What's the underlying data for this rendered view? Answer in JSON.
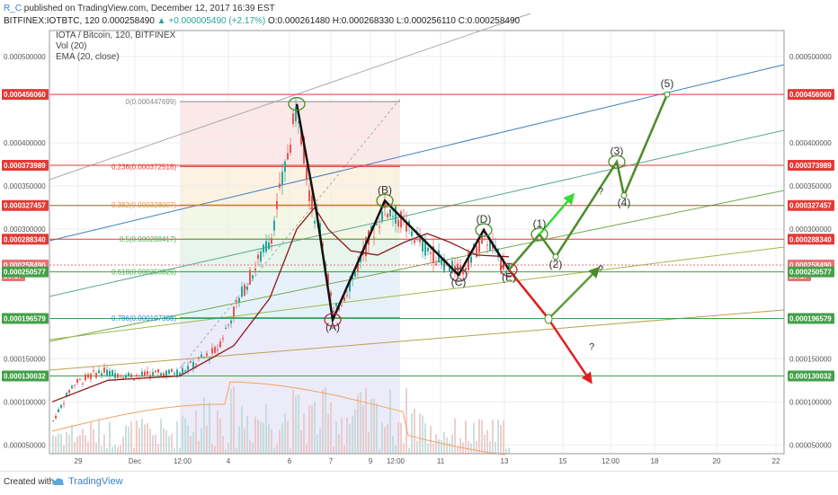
{
  "header": {
    "author": "R_C",
    "published": "published on TradingView.com, December 12, 2017 16:39 EST"
  },
  "symbol_line": {
    "symbol": "BITFINEX:IOTBTC, 120",
    "last": "0.000258490",
    "change": "▲ +0.000005490 (+2.17%)",
    "ohlc": "O:0.000261480 H:0.000268330 L:0.000256110 C:0.000258490"
  },
  "indicators": [
    "IOTA / Bitcoin, 120, BITFINEX",
    "Vol (20)",
    "EMA (20, close)"
  ],
  "footer": {
    "created_with": "Created with",
    "brand": "TradingView"
  },
  "colors": {
    "candle_up": "#26a69a",
    "candle_down": "#ef5350",
    "ema": "#8b1a1a",
    "wave_black": "#111111",
    "wave_green": "#4a8c2a",
    "arrow_bright": "#33dd33",
    "arrow_red": "#e02020",
    "red_line": "#d32f2f",
    "green_line": "#43a047",
    "blue_line": "#3f7fbf",
    "volume": "#c8c8c8"
  },
  "chart_data": {
    "type": "candlestick",
    "price_range": [
      4e-05,
      0.00053
    ],
    "x_tick_labels": [
      "29",
      "Dec",
      "12:00",
      "4",
      "6",
      "7",
      "9",
      "12:00",
      "11",
      "13",
      "15",
      "12:00",
      "18",
      "20",
      "22"
    ],
    "y_tick_labels": [
      "0.000500000",
      "0.000400000",
      "0.000350000",
      "0.000300000",
      "0.000150000",
      "0.000100000",
      "0.000050000"
    ],
    "price_badges": [
      {
        "label": "0.000456060",
        "value": 0.00045606,
        "color": "#e53935"
      },
      {
        "label": "0.000373989",
        "value": 0.000373989,
        "color": "#e53935"
      },
      {
        "label": "0.000327457",
        "value": 0.000327457,
        "color": "#e53935"
      },
      {
        "label": "0.000288340",
        "value": 0.00028834,
        "color": "#e53935"
      },
      {
        "label": "0.000258490",
        "value": 0.00025849,
        "color": "#e57373"
      },
      {
        "label": "20:17",
        "value": 0.000246,
        "color": "#e57373"
      },
      {
        "label": "0.000250577",
        "value": 0.000250577,
        "color": "#43a047"
      },
      {
        "label": "0.000196579",
        "value": 0.000196579,
        "color": "#43a047"
      },
      {
        "label": "0.000130032",
        "value": 0.000130032,
        "color": "#43a047"
      }
    ],
    "fib_levels": [
      {
        "label": "0(0.000447699)",
        "value": 0.000447699,
        "color": "#888888"
      },
      {
        "label": "0.236(0.000372518)",
        "value": 0.000372518,
        "color": "#e53935"
      },
      {
        "label": "0.382(0.000328007)",
        "value": 0.000328007,
        "color": "#c9a227"
      },
      {
        "label": "0.5(0.000288417)",
        "value": 0.000288417,
        "color": "#4caf50"
      },
      {
        "label": "0.618(0.000250826)",
        "value": 0.000250826,
        "color": "#4caf50"
      },
      {
        "label": "0.786(0.000197308)",
        "value": 0.000197308,
        "color": "#1e88e5"
      }
    ],
    "wave_labels": [
      {
        "label": "(A)",
        "price": 0.000195,
        "offset": 12
      },
      {
        "label": "(B)",
        "price": 0.000333,
        "offset": -8
      },
      {
        "label": "(C)",
        "price": 0.000247,
        "offset": 12
      },
      {
        "label": "(D)",
        "price": 0.000299,
        "offset": -8
      },
      {
        "label": "(E)",
        "price": 0.000253,
        "offset": 12
      },
      {
        "label": "(1)",
        "price": 0.000294,
        "offset": -8
      },
      {
        "label": "(2)",
        "price": 0.000268,
        "offset": 12
      },
      {
        "label": "(3)",
        "price": 0.000378,
        "offset": -8
      },
      {
        "label": "(4)",
        "price": 0.000339,
        "offset": 12
      },
      {
        "label": "(5)",
        "price": 0.000456,
        "offset": -8
      }
    ],
    "question_marks": [
      "?",
      "?",
      "?"
    ],
    "last_price": 0.00025849
  }
}
